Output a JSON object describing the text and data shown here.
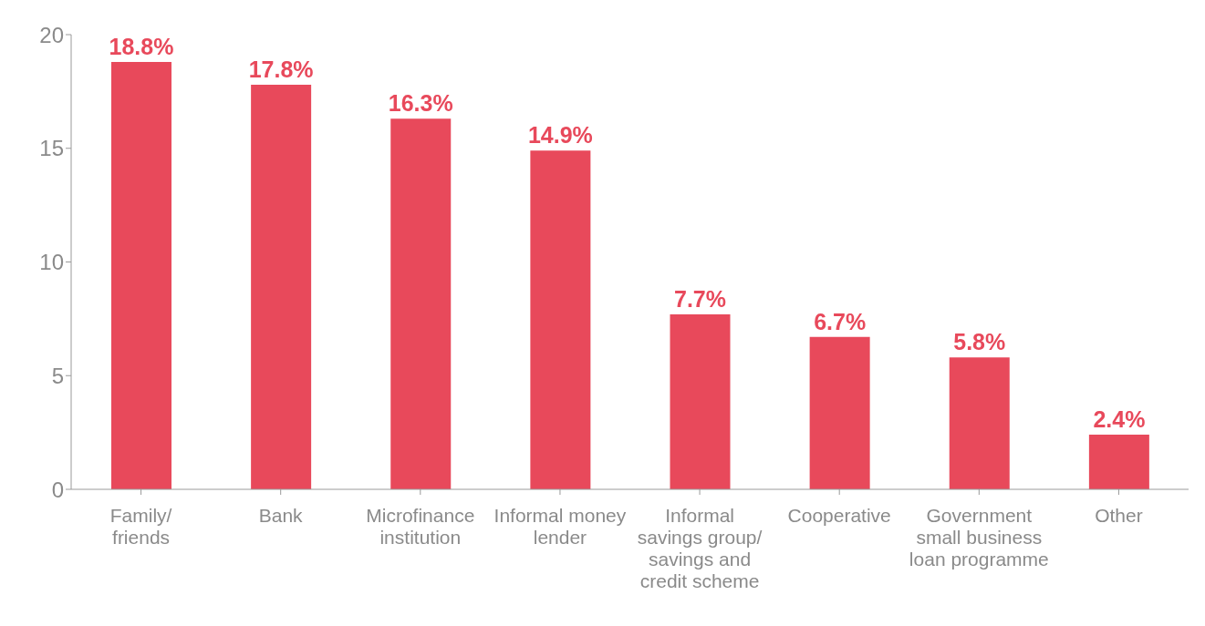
{
  "chart_data": {
    "type": "bar",
    "categories": [
      "Family/ friends",
      "Bank",
      "Microfinance institution",
      "Informal money lender",
      "Informal savings group/ savings and credit scheme",
      "Cooperative",
      "Government small business loan programme",
      "Other"
    ],
    "values": [
      18.8,
      17.8,
      16.3,
      14.9,
      7.7,
      6.7,
      5.8,
      2.4
    ],
    "value_labels": [
      "18.8%",
      "17.8%",
      "16.3%",
      "14.9%",
      "7.7%",
      "6.7%",
      "5.8%",
      "2.4%"
    ],
    "color": "#e8495b",
    "ylim": [
      0,
      20
    ],
    "yticks": [
      0,
      5,
      10,
      15,
      20
    ],
    "grid": false,
    "legend": false
  }
}
